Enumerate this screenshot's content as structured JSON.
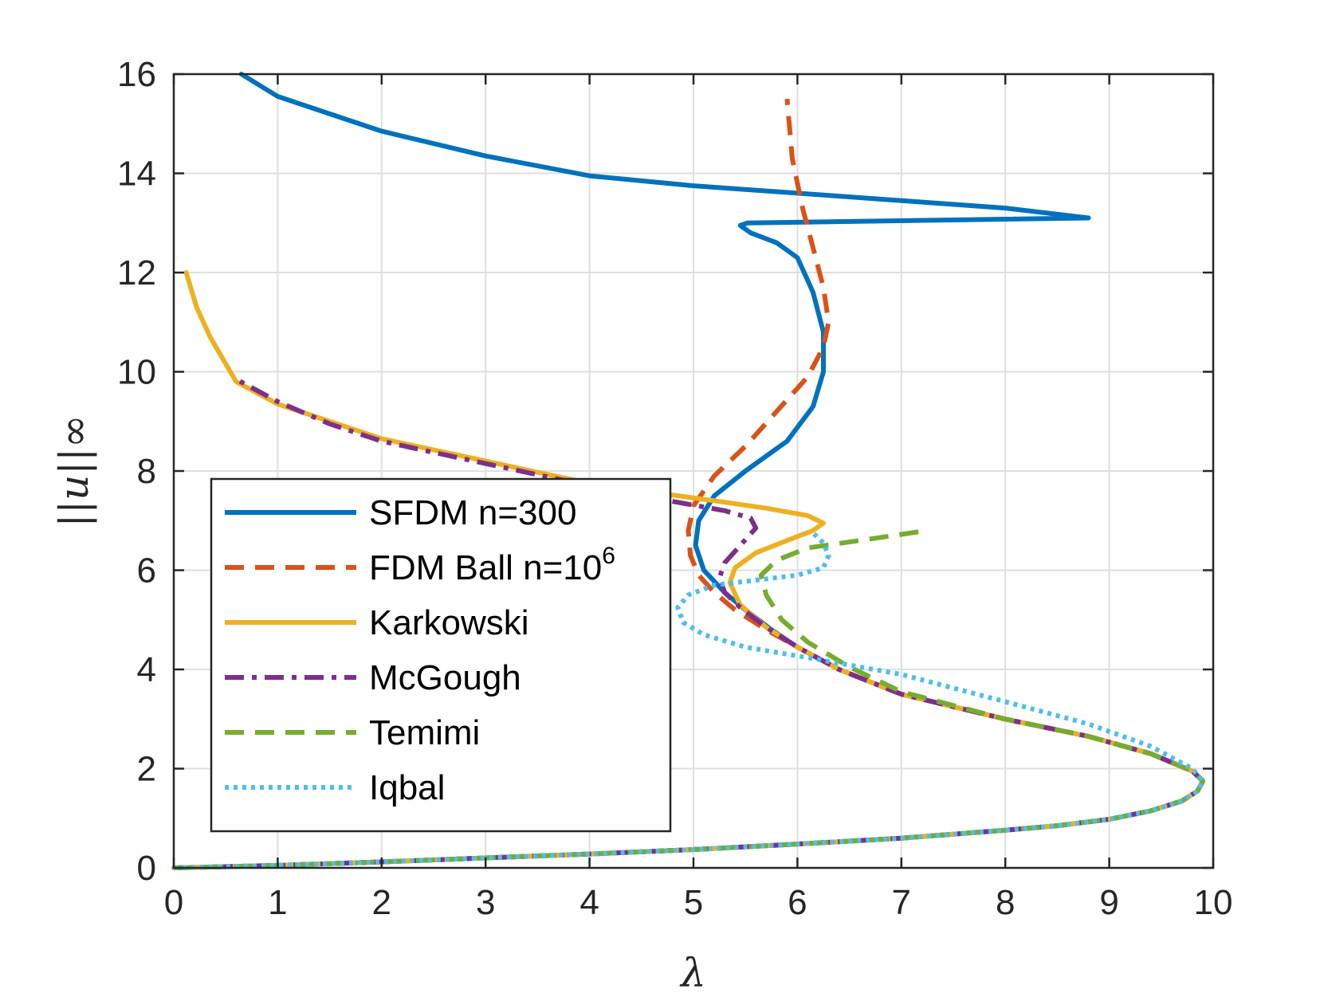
{
  "chart_data": {
    "type": "line",
    "title": "",
    "xlabel": "λ",
    "ylabel": "||u||∞",
    "xlim": [
      0,
      10
    ],
    "ylim": [
      0,
      16
    ],
    "xticks": [
      0,
      1,
      2,
      3,
      4,
      5,
      6,
      7,
      8,
      9,
      10
    ],
    "yticks": [
      0,
      2,
      4,
      6,
      8,
      10,
      12,
      14,
      16
    ],
    "grid": true,
    "legend_position": "center-left",
    "series": [
      {
        "name": "SFDM n=300",
        "label_main": "SFDM n=300",
        "label_sup": "",
        "color": "#0072BD",
        "style": "solid",
        "x": [
          0,
          1,
          2,
          3,
          4,
          5,
          6,
          7,
          8,
          8.5,
          9,
          9.4,
          9.7,
          9.85,
          9.9,
          9.8,
          9.4,
          8.8,
          8,
          7,
          6.4,
          6,
          5.75,
          5.5,
          5.3,
          5.1,
          5.02,
          5.05,
          5.2,
          5.5,
          5.9,
          6.15,
          6.25,
          6.25,
          6.15,
          6.0,
          5.8,
          5.55,
          5.45,
          5.52,
          8.8,
          8.0,
          7,
          6,
          5,
          4,
          3,
          2,
          1,
          0.65
        ],
        "y": [
          0,
          0.05,
          0.12,
          0.2,
          0.28,
          0.37,
          0.48,
          0.6,
          0.76,
          0.85,
          0.98,
          1.15,
          1.35,
          1.55,
          1.75,
          1.95,
          2.3,
          2.65,
          3.0,
          3.5,
          4.0,
          4.45,
          4.8,
          5.2,
          5.55,
          6.0,
          6.5,
          7.0,
          7.5,
          8.0,
          8.6,
          9.3,
          10.0,
          10.8,
          11.6,
          12.3,
          12.6,
          12.8,
          12.95,
          13.0,
          13.1,
          13.3,
          13.45,
          13.6,
          13.75,
          13.95,
          14.35,
          14.85,
          15.55,
          16.0
        ]
      },
      {
        "name": "FDM Ball n=10^6",
        "label_main": "FDM Ball n=10",
        "label_sup": "6",
        "color": "#D95319",
        "style": "dashed",
        "x": [
          0,
          1,
          2,
          3,
          4,
          5,
          6,
          7,
          8,
          8.5,
          9,
          9.4,
          9.7,
          9.85,
          9.9,
          9.8,
          9.4,
          8.8,
          8,
          7,
          6.4,
          6,
          5.7,
          5.4,
          5.2,
          5.05,
          4.97,
          4.95,
          5.0,
          5.2,
          5.5,
          5.8,
          6.1,
          6.25,
          6.3,
          6.25,
          6.15,
          6.05,
          5.95,
          5.9
        ],
        "y": [
          0,
          0.05,
          0.12,
          0.2,
          0.28,
          0.37,
          0.48,
          0.6,
          0.76,
          0.85,
          0.98,
          1.15,
          1.35,
          1.55,
          1.75,
          1.95,
          2.3,
          2.65,
          3.0,
          3.5,
          4.0,
          4.45,
          4.8,
          5.2,
          5.55,
          5.9,
          6.3,
          6.8,
          7.3,
          7.9,
          8.5,
          9.2,
          9.9,
          10.5,
          11.0,
          11.7,
          12.5,
          13.3,
          14.3,
          15.5
        ]
      },
      {
        "name": "Karkowski",
        "label_main": "Karkowski",
        "label_sup": "",
        "color": "#EDB120",
        "style": "solid",
        "x": [
          0,
          1,
          2,
          3,
          4,
          5,
          6,
          7,
          8,
          8.5,
          9,
          9.4,
          9.7,
          9.85,
          9.9,
          9.8,
          9.4,
          8.8,
          8,
          7,
          6.4,
          6,
          5.7,
          5.45,
          5.35,
          5.4,
          5.6,
          5.9,
          6.15,
          6.25,
          6.1,
          5.7,
          5.2,
          4.5,
          4,
          3,
          2,
          1,
          0.6,
          0.35,
          0.22,
          0.12
        ],
        "y": [
          0,
          0.05,
          0.12,
          0.2,
          0.28,
          0.37,
          0.48,
          0.6,
          0.76,
          0.85,
          0.98,
          1.15,
          1.35,
          1.55,
          1.75,
          1.95,
          2.3,
          2.65,
          3.0,
          3.5,
          4.0,
          4.45,
          4.85,
          5.3,
          5.75,
          6.05,
          6.35,
          6.6,
          6.8,
          6.95,
          7.1,
          7.25,
          7.4,
          7.6,
          7.75,
          8.2,
          8.65,
          9.35,
          9.8,
          10.7,
          11.3,
          12.0
        ]
      },
      {
        "name": "McGough",
        "label_main": "McGough",
        "label_sup": "",
        "color": "#7E2F8E",
        "style": "dashdot",
        "x": [
          0,
          1,
          2,
          3,
          4,
          5,
          6,
          7,
          8,
          8.5,
          9,
          9.4,
          9.7,
          9.85,
          9.9,
          9.8,
          9.4,
          8.8,
          8,
          7,
          6.4,
          6,
          5.7,
          5.45,
          5.3,
          5.25,
          5.3,
          5.45,
          5.6,
          5.55,
          5.3,
          4.9,
          4.5,
          4,
          3,
          2,
          1.5,
          1,
          0.6
        ],
        "y": [
          0,
          0.05,
          0.12,
          0.2,
          0.28,
          0.37,
          0.48,
          0.6,
          0.76,
          0.85,
          0.98,
          1.15,
          1.35,
          1.55,
          1.75,
          1.95,
          2.3,
          2.65,
          3.0,
          3.5,
          4.0,
          4.45,
          4.85,
          5.25,
          5.55,
          5.85,
          6.15,
          6.5,
          6.85,
          7.05,
          7.2,
          7.35,
          7.5,
          7.7,
          8.15,
          8.6,
          8.95,
          9.4,
          9.85
        ]
      },
      {
        "name": "Temimi",
        "label_main": "Temimi",
        "label_sup": "",
        "color": "#77AC30",
        "style": "dashed",
        "x": [
          0,
          1,
          2,
          3,
          4,
          5,
          6,
          7,
          8,
          8.5,
          9,
          9.4,
          9.7,
          9.85,
          9.9,
          9.8,
          9.4,
          8.8,
          8,
          7,
          6.5,
          6.1,
          5.85,
          5.7,
          5.65,
          5.8,
          6.1,
          6.6,
          7.25
        ],
        "y": [
          0,
          0.05,
          0.12,
          0.2,
          0.28,
          0.37,
          0.48,
          0.6,
          0.76,
          0.85,
          0.98,
          1.15,
          1.35,
          1.55,
          1.75,
          1.95,
          2.3,
          2.65,
          3.0,
          3.55,
          4.05,
          4.55,
          5.0,
          5.5,
          5.9,
          6.2,
          6.45,
          6.6,
          6.8
        ]
      },
      {
        "name": "Iqbal",
        "label_main": "Iqbal",
        "label_sup": "",
        "color": "#4DBEEE",
        "style": "dotted",
        "x": [
          0,
          1,
          2,
          3,
          4,
          5,
          6,
          7,
          8,
          8.5,
          9,
          9.4,
          9.7,
          9.85,
          9.9,
          9.8,
          9.4,
          8.8,
          8,
          7,
          6.2,
          5.5,
          5.1,
          4.9,
          4.85,
          4.95,
          5.2,
          5.6,
          6.0,
          6.25,
          6.3,
          6.25,
          6.15
        ],
        "y": [
          0,
          0.05,
          0.12,
          0.2,
          0.28,
          0.37,
          0.48,
          0.6,
          0.76,
          0.85,
          0.98,
          1.15,
          1.35,
          1.55,
          1.75,
          2.0,
          2.45,
          2.9,
          3.35,
          3.9,
          4.2,
          4.45,
          4.7,
          4.95,
          5.25,
          5.5,
          5.7,
          5.8,
          5.9,
          6.05,
          6.3,
          6.55,
          6.75
        ]
      }
    ]
  }
}
